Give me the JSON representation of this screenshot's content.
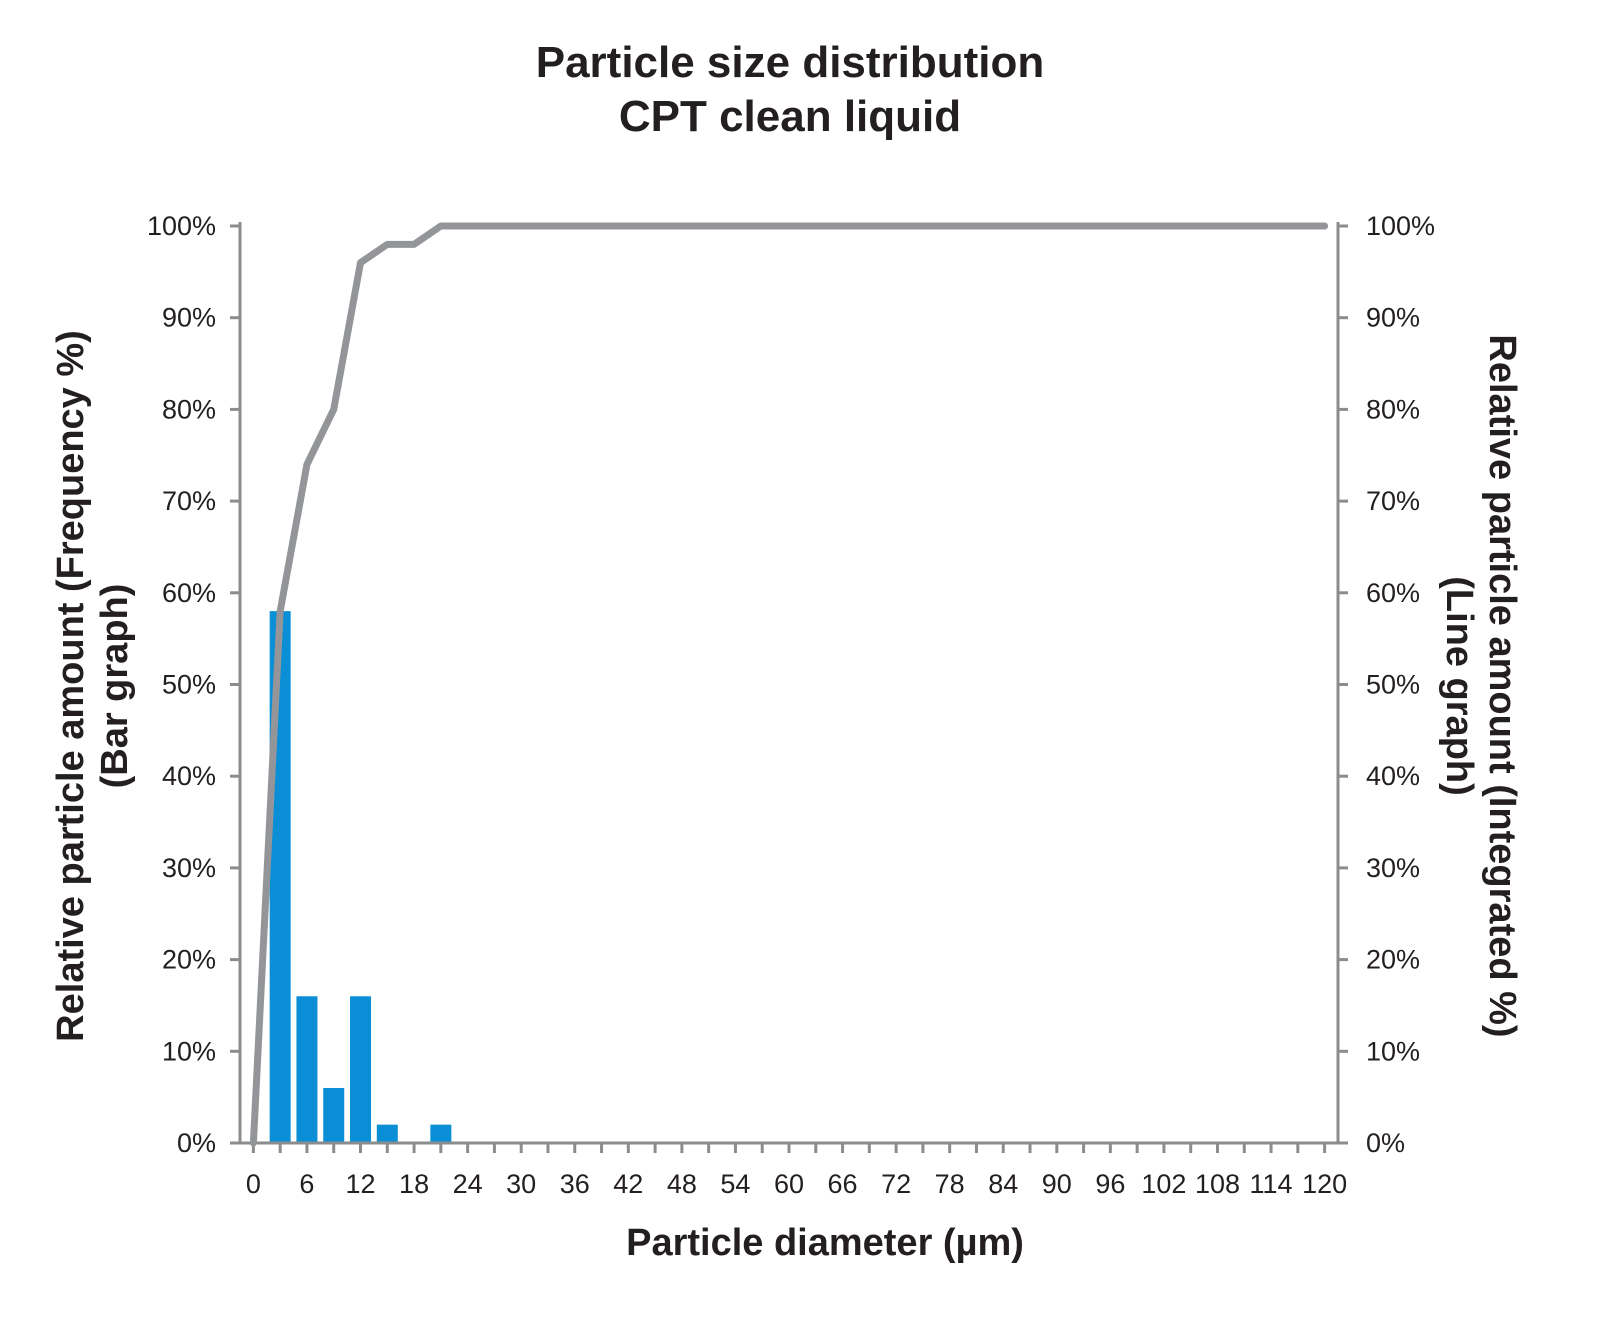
{
  "chart_data": {
    "type": "bar+line",
    "title": "Particle size distribution",
    "subtitle": "CPT clean liquid",
    "xlabel": "Particle diameter (µm)",
    "ylabel_left": "Relative particle amount (Frequency %)",
    "ylabel_left_note": "(Bar graph)",
    "ylabel_right": "Relative particle amount (Integrated %)",
    "ylabel_right_note": "(Line graph)",
    "x_ticks": [
      "0",
      "6",
      "12",
      "18",
      "24",
      "30",
      "36",
      "42",
      "48",
      "54",
      "60",
      "66",
      "72",
      "78",
      "84",
      "90",
      "96",
      "102",
      "108",
      "114",
      "120"
    ],
    "y_ticks": [
      "0%",
      "10%",
      "20%",
      "30%",
      "40%",
      "50%",
      "60%",
      "70%",
      "80%",
      "90%",
      "100%"
    ],
    "xlim": [
      -1.5,
      121.5
    ],
    "ylim": [
      0,
      100
    ],
    "grid": false,
    "bar_color": "#0a8fd6",
    "line_color": "#939598",
    "bar_series": {
      "name": "Frequency %",
      "x": [
        3,
        6,
        9,
        12,
        15,
        18,
        21
      ],
      "values": [
        58,
        16,
        6,
        16,
        2,
        0,
        2
      ]
    },
    "line_series": {
      "name": "Integrated %",
      "x": [
        0,
        3,
        6,
        9,
        12,
        15,
        18,
        21,
        24,
        30,
        36,
        42,
        48,
        54,
        60,
        66,
        72,
        78,
        84,
        90,
        96,
        102,
        108,
        114,
        120
      ],
      "values": [
        0,
        58,
        74,
        80,
        96,
        98,
        98,
        100,
        100,
        100,
        100,
        100,
        100,
        100,
        100,
        100,
        100,
        100,
        100,
        100,
        100,
        100,
        100,
        100,
        100
      ]
    }
  }
}
